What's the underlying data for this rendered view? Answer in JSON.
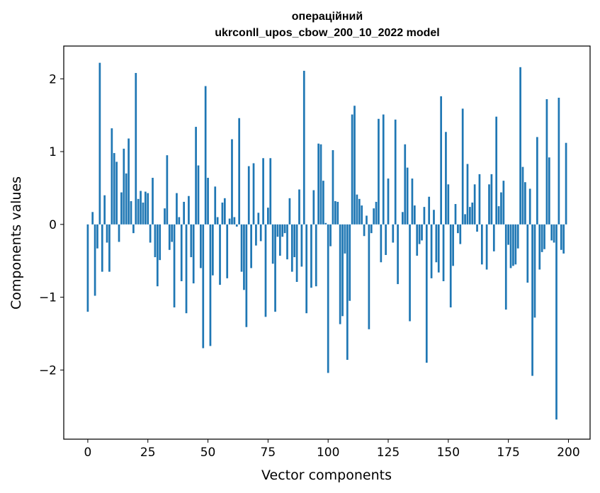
{
  "chart_data": {
    "type": "bar",
    "title_lines": [
      "операційний",
      "ukrconll_upos_cbow_200_10_2022 model"
    ],
    "xlabel": "Vector components",
    "ylabel": "Components values",
    "xlim": [
      -10,
      209
    ],
    "ylim": [
      -2.95,
      2.45
    ],
    "xticks": [
      0,
      25,
      50,
      75,
      100,
      125,
      150,
      175,
      200
    ],
    "xtick_labels": [
      "0",
      "25",
      "50",
      "75",
      "100",
      "125",
      "150",
      "175",
      "200"
    ],
    "yticks": [
      -2,
      -1,
      0,
      1,
      2
    ],
    "ytick_labels": [
      "−2",
      "−1",
      "0",
      "1",
      "2"
    ],
    "bar_color": "#1f77b4",
    "grid": false,
    "values": [
      -1.2,
      0.0,
      0.17,
      -0.98,
      -0.33,
      2.22,
      -0.65,
      0.4,
      -0.25,
      -0.65,
      1.32,
      0.98,
      0.86,
      -0.24,
      0.44,
      1.04,
      0.7,
      1.18,
      0.32,
      -0.12,
      2.08,
      0.35,
      0.46,
      0.3,
      0.45,
      0.43,
      -0.25,
      0.64,
      -0.45,
      -0.85,
      -0.49,
      0.0,
      0.22,
      0.95,
      -0.35,
      -0.24,
      -1.14,
      0.43,
      0.1,
      -0.78,
      0.31,
      -1.22,
      0.39,
      -0.45,
      -0.81,
      1.34,
      0.81,
      -0.6,
      -1.7,
      1.9,
      0.64,
      -1.67,
      -0.7,
      0.52,
      0.1,
      -0.83,
      0.3,
      0.36,
      -0.74,
      0.08,
      1.17,
      0.1,
      -0.03,
      1.46,
      -0.65,
      -0.9,
      -1.41,
      0.8,
      -0.6,
      0.84,
      -0.29,
      0.16,
      -0.23,
      0.91,
      -1.27,
      0.23,
      0.91,
      -0.54,
      -1.2,
      -0.17,
      -0.43,
      -0.17,
      -0.12,
      -0.48,
      0.36,
      -0.65,
      -0.45,
      -0.79,
      0.48,
      -0.58,
      2.11,
      -1.22,
      0.0,
      -0.87,
      0.47,
      -0.85,
      1.11,
      1.1,
      0.6,
      0.02,
      -2.04,
      -0.3,
      1.02,
      0.32,
      0.31,
      -1.37,
      -1.26,
      -0.4,
      -1.86,
      -1.05,
      1.51,
      1.63,
      0.41,
      0.35,
      0.26,
      -0.16,
      0.12,
      -1.44,
      -0.12,
      0.22,
      0.31,
      1.45,
      -0.52,
      1.51,
      -0.42,
      0.63,
      0.0,
      -0.25,
      1.44,
      -0.82,
      0.0,
      0.17,
      1.1,
      0.78,
      -1.33,
      0.63,
      0.26,
      -0.43,
      -0.27,
      -0.22,
      0.24,
      -1.9,
      0.38,
      -0.74,
      0.2,
      -0.52,
      -0.66,
      1.76,
      -0.78,
      1.27,
      0.55,
      -1.14,
      -0.57,
      0.28,
      -0.12,
      -0.27,
      1.59,
      0.14,
      0.83,
      0.24,
      0.3,
      0.55,
      -0.1,
      0.69,
      -0.55,
      0.0,
      -0.62,
      0.55,
      0.69,
      -0.37,
      1.48,
      0.25,
      0.44,
      0.6,
      -1.17,
      -0.28,
      -0.6,
      -0.57,
      -0.55,
      -0.33,
      2.16,
      0.79,
      0.58,
      -0.8,
      0.49,
      -2.08,
      -1.28,
      1.2,
      -0.62,
      -0.38,
      -0.34,
      1.72,
      0.92,
      -0.22,
      -0.25,
      -2.68,
      1.74,
      -0.35,
      -0.4,
      1.12
    ]
  }
}
